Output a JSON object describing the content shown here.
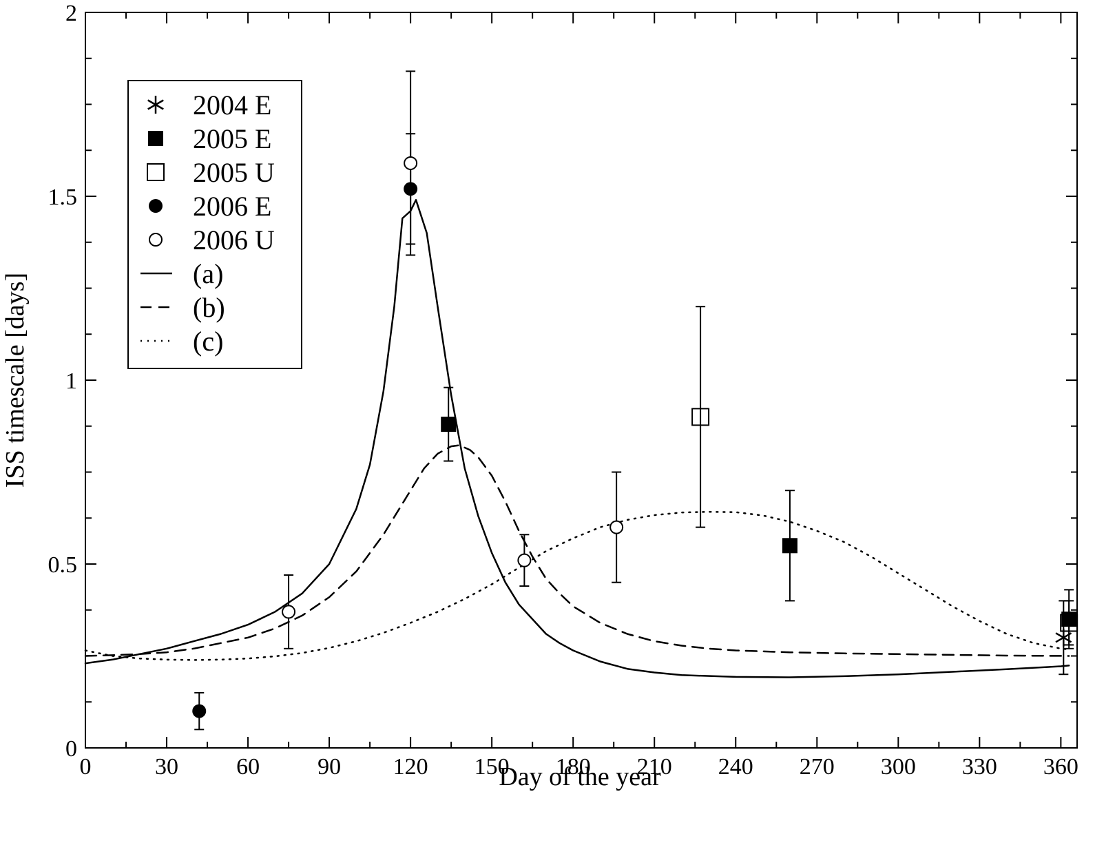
{
  "chart_data": {
    "type": "scatter",
    "title": "",
    "xlabel": "Day of the year",
    "ylabel": "ISS timescale [days]",
    "xlim": [
      0,
      366
    ],
    "ylim": [
      0,
      2
    ],
    "x_ticks": [
      0,
      30,
      60,
      90,
      120,
      150,
      180,
      210,
      240,
      270,
      300,
      330,
      360
    ],
    "x_tick_labels": [
      "0",
      "30",
      "60",
      "90",
      "120",
      "150",
      "180",
      "210",
      "240",
      "270",
      "300",
      "330",
      "360"
    ],
    "y_ticks": [
      0,
      0.5,
      1,
      1.5,
      2
    ],
    "y_tick_labels": [
      "0",
      "0.5",
      "1",
      "1.5",
      "2"
    ],
    "grid": false,
    "legend_position": "top-left",
    "series": [
      {
        "name": "2004 E",
        "marker": "asterisk",
        "points": [
          {
            "x": 361,
            "y": 0.3,
            "yerr": 0.1
          }
        ]
      },
      {
        "name": "2005 E",
        "marker": "filled-square",
        "points": [
          {
            "x": 134,
            "y": 0.88,
            "yerr": 0.1
          },
          {
            "x": 260,
            "y": 0.55,
            "yerr": 0.15
          },
          {
            "x": 363,
            "y": 0.35,
            "yerr": 0.08
          }
        ]
      },
      {
        "name": "2005 U",
        "marker": "open-square",
        "points": [
          {
            "x": 227,
            "y": 0.9,
            "yerr": 0.3
          },
          {
            "x": 363,
            "y": 0.34,
            "yerr": 0.06
          }
        ]
      },
      {
        "name": "2006 E",
        "marker": "filled-circle",
        "points": [
          {
            "x": 42,
            "y": 0.1,
            "yerr": 0.05
          },
          {
            "x": 120,
            "y": 1.52,
            "yerr": 0.15
          }
        ]
      },
      {
        "name": "2006 U",
        "marker": "open-circle",
        "points": [
          {
            "x": 75,
            "y": 0.37,
            "yerr": 0.1
          },
          {
            "x": 120,
            "y": 1.59,
            "yerr": 0.25
          },
          {
            "x": 162,
            "y": 0.51,
            "yerr": 0.07
          },
          {
            "x": 196,
            "y": 0.6,
            "yerr": 0.15
          }
        ]
      }
    ],
    "curves": [
      {
        "name": "(a)",
        "style": "solid",
        "points": [
          [
            0,
            0.23
          ],
          [
            10,
            0.24
          ],
          [
            20,
            0.255
          ],
          [
            30,
            0.27
          ],
          [
            40,
            0.29
          ],
          [
            50,
            0.31
          ],
          [
            60,
            0.335
          ],
          [
            70,
            0.37
          ],
          [
            80,
            0.42
          ],
          [
            90,
            0.5
          ],
          [
            100,
            0.65
          ],
          [
            105,
            0.77
          ],
          [
            110,
            0.97
          ],
          [
            114,
            1.2
          ],
          [
            117,
            1.44
          ],
          [
            120,
            1.46
          ],
          [
            122,
            1.49
          ],
          [
            126,
            1.4
          ],
          [
            130,
            1.2
          ],
          [
            135,
            0.96
          ],
          [
            140,
            0.76
          ],
          [
            145,
            0.63
          ],
          [
            150,
            0.53
          ],
          [
            155,
            0.45
          ],
          [
            160,
            0.39
          ],
          [
            165,
            0.35
          ],
          [
            170,
            0.31
          ],
          [
            175,
            0.285
          ],
          [
            180,
            0.265
          ],
          [
            190,
            0.235
          ],
          [
            200,
            0.215
          ],
          [
            210,
            0.205
          ],
          [
            220,
            0.198
          ],
          [
            240,
            0.193
          ],
          [
            260,
            0.192
          ],
          [
            280,
            0.195
          ],
          [
            300,
            0.2
          ],
          [
            320,
            0.207
          ],
          [
            340,
            0.214
          ],
          [
            360,
            0.222
          ],
          [
            363,
            0.224
          ]
        ]
      },
      {
        "name": "(b)",
        "style": "dashed",
        "points": [
          [
            0,
            0.25
          ],
          [
            10,
            0.252
          ],
          [
            20,
            0.255
          ],
          [
            30,
            0.26
          ],
          [
            40,
            0.27
          ],
          [
            50,
            0.285
          ],
          [
            60,
            0.3
          ],
          [
            70,
            0.325
          ],
          [
            80,
            0.36
          ],
          [
            90,
            0.41
          ],
          [
            100,
            0.48
          ],
          [
            110,
            0.58
          ],
          [
            120,
            0.7
          ],
          [
            125,
            0.76
          ],
          [
            130,
            0.8
          ],
          [
            135,
            0.82
          ],
          [
            138,
            0.823
          ],
          [
            142,
            0.81
          ],
          [
            145,
            0.79
          ],
          [
            150,
            0.74
          ],
          [
            155,
            0.67
          ],
          [
            160,
            0.59
          ],
          [
            165,
            0.52
          ],
          [
            170,
            0.46
          ],
          [
            175,
            0.42
          ],
          [
            180,
            0.385
          ],
          [
            190,
            0.34
          ],
          [
            200,
            0.31
          ],
          [
            210,
            0.29
          ],
          [
            220,
            0.278
          ],
          [
            230,
            0.27
          ],
          [
            240,
            0.265
          ],
          [
            260,
            0.26
          ],
          [
            280,
            0.257
          ],
          [
            300,
            0.255
          ],
          [
            320,
            0.253
          ],
          [
            340,
            0.251
          ],
          [
            363,
            0.25
          ]
        ]
      },
      {
        "name": "(c)",
        "style": "dotted",
        "points": [
          [
            0,
            0.265
          ],
          [
            10,
            0.25
          ],
          [
            20,
            0.243
          ],
          [
            30,
            0.24
          ],
          [
            40,
            0.239
          ],
          [
            50,
            0.24
          ],
          [
            60,
            0.243
          ],
          [
            70,
            0.249
          ],
          [
            80,
            0.258
          ],
          [
            90,
            0.272
          ],
          [
            100,
            0.29
          ],
          [
            110,
            0.313
          ],
          [
            120,
            0.34
          ],
          [
            130,
            0.37
          ],
          [
            140,
            0.405
          ],
          [
            150,
            0.445
          ],
          [
            160,
            0.49
          ],
          [
            170,
            0.535
          ],
          [
            180,
            0.57
          ],
          [
            190,
            0.6
          ],
          [
            200,
            0.62
          ],
          [
            210,
            0.633
          ],
          [
            220,
            0.64
          ],
          [
            230,
            0.642
          ],
          [
            240,
            0.641
          ],
          [
            250,
            0.632
          ],
          [
            260,
            0.615
          ],
          [
            270,
            0.59
          ],
          [
            280,
            0.56
          ],
          [
            290,
            0.52
          ],
          [
            300,
            0.475
          ],
          [
            310,
            0.43
          ],
          [
            320,
            0.385
          ],
          [
            330,
            0.345
          ],
          [
            340,
            0.31
          ],
          [
            350,
            0.285
          ],
          [
            360,
            0.27
          ],
          [
            363,
            0.268
          ]
        ]
      }
    ]
  }
}
